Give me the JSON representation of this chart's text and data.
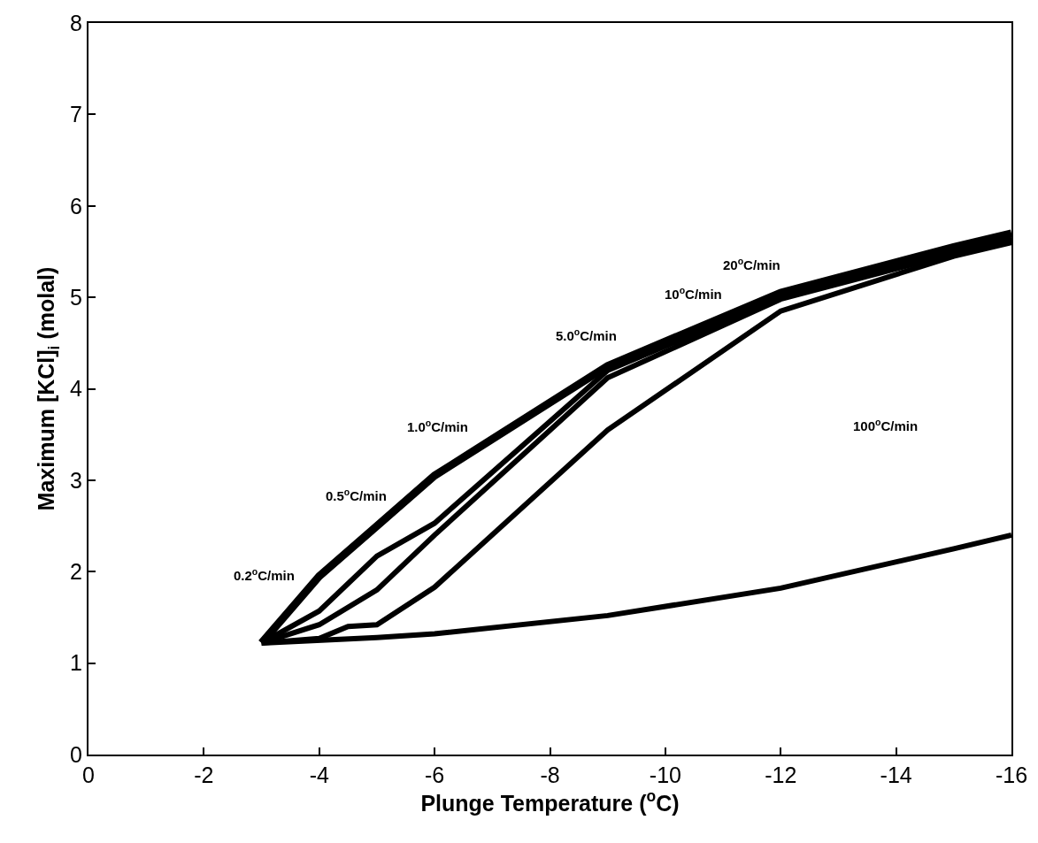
{
  "chart_data": {
    "type": "line",
    "xlabel": "Plunge Temperature ($^{o}$C)",
    "ylabel": "Maximum [KCl]$_{i}$ (molal)",
    "xlim": [
      0,
      -16
    ],
    "xticks": [
      0,
      -2,
      -4,
      -6,
      -8,
      -10,
      -12,
      -14,
      -16
    ],
    "ylim": [
      0,
      8
    ],
    "yticks": [
      0,
      1,
      2,
      3,
      4,
      5,
      6,
      7,
      8
    ],
    "marker": "none",
    "line_style": "solid",
    "series": [
      {
        "color": "#000000",
        "x": [
          -3,
          -4,
          -5,
          -6,
          -9,
          -12,
          -15,
          -16
        ],
        "values": [
          1.22,
          1.95,
          2.5,
          3.05,
          4.25,
          5.05,
          5.55,
          5.7
        ]
      },
      {
        "color": "#000000",
        "x": [
          -3,
          -4,
          -5,
          -6,
          -9,
          -12,
          -15,
          -16
        ],
        "values": [
          1.22,
          1.57,
          2.17,
          2.53,
          4.2,
          5.0,
          5.5,
          5.65
        ]
      },
      {
        "color": "#000000",
        "x": [
          -3,
          -4,
          -5,
          -6,
          -9,
          -12,
          -15,
          -16
        ],
        "values": [
          1.22,
          1.42,
          1.8,
          2.4,
          4.12,
          4.98,
          5.48,
          5.62
        ]
      },
      {
        "color": "#000000",
        "x": [
          -3,
          -4,
          -4.5,
          -5,
          -6,
          -9,
          -12,
          -15,
          -16
        ],
        "values": [
          1.22,
          1.27,
          1.4,
          1.42,
          1.83,
          3.55,
          4.85,
          5.45,
          5.6
        ]
      },
      {
        "color": "#000000",
        "x": [
          -3,
          -5,
          -6,
          -9,
          -12,
          -15,
          -16
        ],
        "values": [
          1.22,
          1.28,
          1.32,
          1.52,
          1.82,
          2.25,
          2.4
        ]
      }
    ],
    "annotations": [
      "0.2$^{o}$C/min",
      "0.5$^{o}$C/min",
      "1.0$^{o}$C/min",
      "5.0$^{o}$C/min",
      "10$^{o}$C/min",
      "20$^{o}$C/min",
      "100$^{o}$C/min"
    ]
  }
}
